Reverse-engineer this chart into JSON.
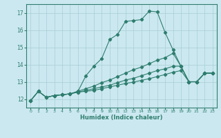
{
  "xlabel": "Humidex (Indice chaleur)",
  "bg_color": "#cbe8f0",
  "grid_color": "#a8cdd4",
  "line_color": "#2e7d6e",
  "xlim": [
    -0.5,
    23.5
  ],
  "ylim": [
    11.5,
    17.5
  ],
  "yticks": [
    12,
    13,
    14,
    15,
    16,
    17
  ],
  "xticks": [
    0,
    1,
    2,
    3,
    4,
    5,
    6,
    7,
    8,
    9,
    10,
    11,
    12,
    13,
    14,
    15,
    16,
    17,
    18,
    19,
    20,
    21,
    22,
    23
  ],
  "curve1_x": [
    0,
    1,
    2,
    3,
    4,
    5,
    6,
    7,
    8,
    9,
    10,
    11,
    12,
    13,
    14,
    15,
    16,
    17,
    18,
    19,
    20,
    21,
    22,
    23
  ],
  "curve1_y": [
    11.9,
    12.45,
    12.1,
    12.2,
    12.25,
    12.3,
    12.45,
    13.35,
    13.9,
    14.35,
    15.45,
    15.75,
    16.5,
    16.55,
    16.6,
    17.1,
    17.05,
    15.85,
    14.85,
    13.9,
    13.0,
    13.0,
    13.5,
    13.5
  ],
  "curve2_x": [
    0,
    1,
    2,
    3,
    4,
    5,
    6,
    7,
    8,
    9,
    10,
    11,
    12,
    13,
    14,
    15,
    16,
    17,
    18,
    19,
    20,
    21,
    22,
    23
  ],
  "curve2_y": [
    11.9,
    12.45,
    12.1,
    12.2,
    12.25,
    12.3,
    12.45,
    12.6,
    12.75,
    12.95,
    13.1,
    13.3,
    13.5,
    13.7,
    13.85,
    14.05,
    14.25,
    14.4,
    14.65,
    13.9,
    13.0,
    13.0,
    13.5,
    13.5
  ],
  "curve3_x": [
    0,
    1,
    2,
    3,
    4,
    5,
    6,
    7,
    8,
    9,
    10,
    11,
    12,
    13,
    14,
    15,
    16,
    17,
    18,
    19,
    20,
    21,
    22,
    23
  ],
  "curve3_y": [
    11.9,
    12.45,
    12.1,
    12.2,
    12.25,
    12.3,
    12.4,
    12.5,
    12.6,
    12.7,
    12.8,
    12.95,
    13.1,
    13.2,
    13.35,
    13.5,
    13.65,
    13.75,
    13.9,
    13.9,
    13.0,
    13.0,
    13.5,
    13.5
  ],
  "curve4_x": [
    0,
    1,
    2,
    3,
    4,
    5,
    6,
    7,
    8,
    9,
    10,
    11,
    12,
    13,
    14,
    15,
    16,
    17,
    18,
    19,
    20,
    21,
    22,
    23
  ],
  "curve4_y": [
    11.9,
    12.45,
    12.1,
    12.2,
    12.25,
    12.3,
    12.4,
    12.45,
    12.5,
    12.6,
    12.7,
    12.8,
    12.9,
    12.98,
    13.08,
    13.18,
    13.3,
    13.42,
    13.55,
    13.65,
    13.0,
    13.0,
    13.5,
    13.5
  ]
}
